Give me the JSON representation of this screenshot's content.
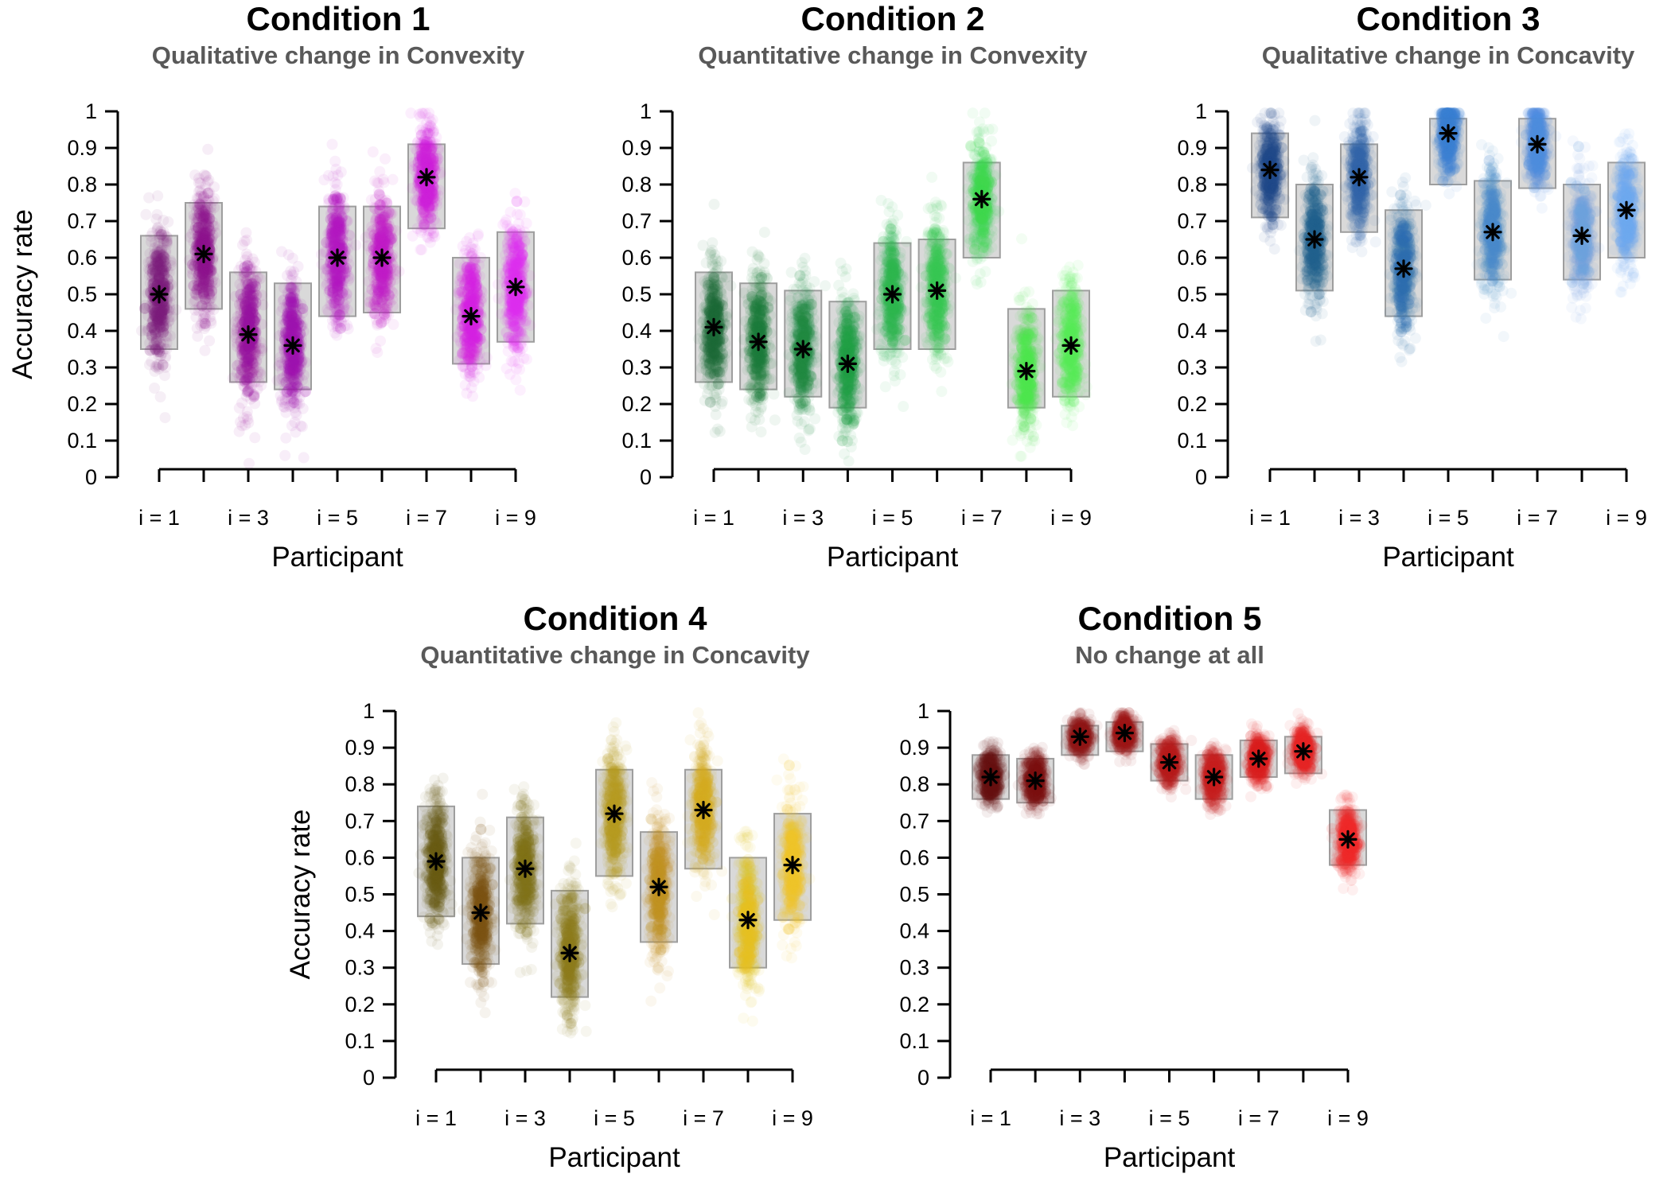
{
  "chart_data": [
    {
      "type": "scatter",
      "title": "Condition 1",
      "subtitle": "Qualitative change in Convexity",
      "xlabel": "Participant",
      "ylabel": "Accuracy rate",
      "ylim": [
        0,
        1
      ],
      "yticks": [
        "0",
        "0.1",
        "0.2",
        "0.3",
        "0.4",
        "0.5",
        "0.6",
        "0.7",
        "0.8",
        "0.9",
        "1"
      ],
      "xtick_labels": [
        "i = 1",
        "i = 3",
        "i = 5",
        "i = 7",
        "i = 9"
      ],
      "participants": [
        1,
        2,
        3,
        4,
        5,
        6,
        7,
        8,
        9
      ],
      "mean": [
        0.5,
        0.61,
        0.39,
        0.36,
        0.6,
        0.6,
        0.82,
        0.44,
        0.52
      ],
      "box_low": [
        0.35,
        0.46,
        0.26,
        0.24,
        0.44,
        0.45,
        0.68,
        0.31,
        0.37
      ],
      "box_high": [
        0.66,
        0.75,
        0.56,
        0.53,
        0.74,
        0.74,
        0.91,
        0.6,
        0.67
      ],
      "colors": [
        "#7d1a7d",
        "#8e148e",
        "#9512a0",
        "#a012b0",
        "#b218c0",
        "#c01cca",
        "#ce22dc",
        "#d71ee2",
        "#e02cf0"
      ]
    },
    {
      "type": "scatter",
      "title": "Condition 2",
      "subtitle": "Quantitative change in Convexity",
      "xlabel": "Participant",
      "ylabel": "",
      "ylim": [
        0,
        1
      ],
      "yticks": [
        "0",
        "0.1",
        "0.2",
        "0.3",
        "0.4",
        "0.5",
        "0.6",
        "0.7",
        "0.8",
        "0.9",
        "1"
      ],
      "xtick_labels": [
        "i = 1",
        "i = 3",
        "i = 5",
        "i = 7",
        "i = 9"
      ],
      "participants": [
        1,
        2,
        3,
        4,
        5,
        6,
        7,
        8,
        9
      ],
      "mean": [
        0.41,
        0.37,
        0.35,
        0.31,
        0.5,
        0.51,
        0.76,
        0.29,
        0.36
      ],
      "box_low": [
        0.26,
        0.24,
        0.22,
        0.19,
        0.35,
        0.35,
        0.6,
        0.19,
        0.22
      ],
      "box_high": [
        0.56,
        0.53,
        0.51,
        0.48,
        0.64,
        0.65,
        0.86,
        0.46,
        0.51
      ],
      "colors": [
        "#1c6b35",
        "#1d7a3a",
        "#208a40",
        "#22a046",
        "#2cb84e",
        "#38c850",
        "#3fd94f",
        "#4ee64f",
        "#55ee55"
      ]
    },
    {
      "type": "scatter",
      "title": "Condition 3",
      "subtitle": "Qualitative change in Concavity",
      "xlabel": "Participant",
      "ylabel": "",
      "ylim": [
        0,
        1
      ],
      "yticks": [
        "0",
        "0.1",
        "0.2",
        "0.3",
        "0.4",
        "0.5",
        "0.6",
        "0.7",
        "0.8",
        "0.9",
        "1"
      ],
      "xtick_labels": [
        "i = 1",
        "i = 3",
        "i = 5",
        "i = 7",
        "i = 9"
      ],
      "participants": [
        1,
        2,
        3,
        4,
        5,
        6,
        7,
        8,
        9
      ],
      "mean": [
        0.84,
        0.65,
        0.82,
        0.57,
        0.94,
        0.67,
        0.91,
        0.66,
        0.73
      ],
      "box_low": [
        0.71,
        0.51,
        0.67,
        0.44,
        0.8,
        0.54,
        0.79,
        0.54,
        0.6
      ],
      "box_high": [
        0.94,
        0.8,
        0.91,
        0.73,
        0.98,
        0.81,
        0.98,
        0.8,
        0.86
      ],
      "colors": [
        "#1f4a8a",
        "#1f5f8c",
        "#3062a8",
        "#2f6fb0",
        "#3a7fd0",
        "#4a88cc",
        "#4f8fe0",
        "#6ea2e0",
        "#6fa8f0"
      ]
    },
    {
      "type": "scatter",
      "title": "Condition 4",
      "subtitle": "Quantitative change in Concavity",
      "xlabel": "Participant",
      "ylabel": "Accuracy rate",
      "ylim": [
        0,
        1
      ],
      "yticks": [
        "0",
        "0.1",
        "0.2",
        "0.3",
        "0.4",
        "0.5",
        "0.6",
        "0.7",
        "0.8",
        "0.9",
        "1"
      ],
      "xtick_labels": [
        "i = 1",
        "i = 3",
        "i = 5",
        "i = 7",
        "i = 9"
      ],
      "participants": [
        1,
        2,
        3,
        4,
        5,
        6,
        7,
        8,
        9
      ],
      "mean": [
        0.59,
        0.45,
        0.57,
        0.34,
        0.72,
        0.52,
        0.73,
        0.43,
        0.58
      ],
      "box_low": [
        0.44,
        0.31,
        0.42,
        0.22,
        0.55,
        0.37,
        0.57,
        0.3,
        0.43
      ],
      "box_high": [
        0.74,
        0.6,
        0.71,
        0.51,
        0.84,
        0.67,
        0.84,
        0.6,
        0.72
      ],
      "colors": [
        "#6a5a10",
        "#7a5210",
        "#807018",
        "#8c7a1c",
        "#b49a1e",
        "#c09020",
        "#d6ae20",
        "#e6c01e",
        "#f0c428"
      ]
    },
    {
      "type": "scatter",
      "title": "Condition 5",
      "subtitle": "No change at all",
      "xlabel": "Participant",
      "ylabel": "",
      "ylim": [
        0,
        1
      ],
      "yticks": [
        "0",
        "0.1",
        "0.2",
        "0.3",
        "0.4",
        "0.5",
        "0.6",
        "0.7",
        "0.8",
        "0.9",
        "1"
      ],
      "xtick_labels": [
        "i = 1",
        "i = 3",
        "i = 5",
        "i = 7",
        "i = 9"
      ],
      "participants": [
        1,
        2,
        3,
        4,
        5,
        6,
        7,
        8,
        9
      ],
      "mean": [
        0.82,
        0.81,
        0.93,
        0.94,
        0.86,
        0.82,
        0.87,
        0.89,
        0.65
      ],
      "box_low": [
        0.76,
        0.75,
        0.88,
        0.89,
        0.81,
        0.76,
        0.82,
        0.83,
        0.58
      ],
      "box_high": [
        0.88,
        0.87,
        0.96,
        0.97,
        0.91,
        0.88,
        0.92,
        0.93,
        0.73
      ],
      "colors": [
        "#6a1010",
        "#7a1212",
        "#901616",
        "#a01818",
        "#b81c1c",
        "#c81e1e",
        "#dc2020",
        "#e62424",
        "#f02a2a"
      ]
    }
  ]
}
